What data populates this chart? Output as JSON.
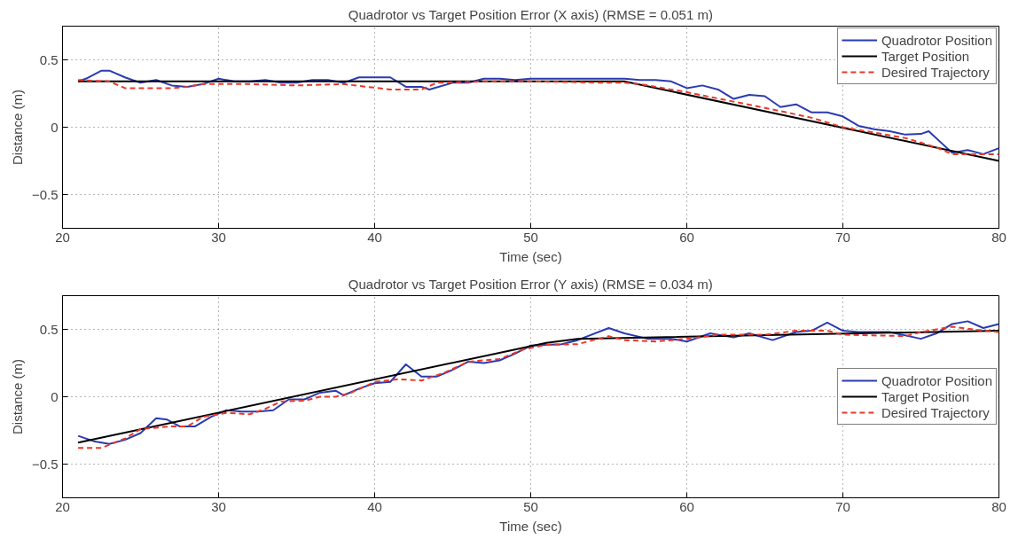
{
  "chart_data": [
    {
      "type": "line",
      "title": "Quadrotor vs Target Position Error (X axis) (RMSE = 0.051 m)",
      "xlabel": "Time (sec)",
      "ylabel": "Distance (m)",
      "xlim": [
        20,
        80
      ],
      "xticks": [
        20,
        30,
        40,
        50,
        60,
        70,
        80
      ],
      "ylim": [
        -0.75,
        0.75
      ],
      "yticks": [
        -0.5,
        0,
        0.5
      ],
      "grid": true,
      "legend": "top right",
      "series": [
        {
          "name": "Quadrotor Position",
          "color": "#2a3bb0",
          "line_style": "solid",
          "x": [
            21,
            21.5,
            22.5,
            23,
            24,
            25,
            26,
            27,
            28,
            29,
            30,
            31,
            32,
            33,
            34,
            35,
            36,
            37,
            38,
            39,
            40,
            41,
            42,
            43,
            43.5,
            45,
            46,
            47,
            48,
            49,
            50,
            52,
            54,
            56,
            57,
            58,
            59,
            60,
            61,
            62,
            63,
            64,
            65,
            66,
            67,
            68,
            69,
            70,
            71,
            72,
            73,
            74,
            75,
            75.5,
            77,
            78,
            79,
            80
          ],
          "values": [
            0.34,
            0.36,
            0.42,
            0.42,
            0.37,
            0.33,
            0.35,
            0.31,
            0.3,
            0.32,
            0.36,
            0.34,
            0.34,
            0.35,
            0.33,
            0.33,
            0.35,
            0.35,
            0.33,
            0.37,
            0.37,
            0.37,
            0.3,
            0.3,
            0.28,
            0.33,
            0.33,
            0.36,
            0.36,
            0.35,
            0.36,
            0.36,
            0.36,
            0.36,
            0.35,
            0.35,
            0.34,
            0.29,
            0.31,
            0.28,
            0.21,
            0.24,
            0.23,
            0.15,
            0.17,
            0.11,
            0.11,
            0.08,
            0.01,
            -0.015,
            -0.03,
            -0.055,
            -0.05,
            -0.03,
            -0.19,
            -0.17,
            -0.2,
            -0.155
          ]
        },
        {
          "name": "Target Position",
          "color": "#000000",
          "line_style": "solid",
          "x": [
            21,
            56,
            80
          ],
          "values": [
            0.34,
            0.34,
            -0.25
          ]
        },
        {
          "name": "Desired Trajectory",
          "color": "#e8382a",
          "line_style": "dashed",
          "x": [
            21,
            23,
            24,
            27,
            28,
            29,
            32,
            35,
            38,
            39.5,
            41,
            43,
            44,
            47,
            50,
            55,
            56,
            57,
            60,
            63,
            66,
            68,
            70,
            72,
            74,
            76,
            77,
            78,
            79,
            80
          ],
          "values": [
            0.35,
            0.34,
            0.29,
            0.29,
            0.3,
            0.32,
            0.32,
            0.31,
            0.32,
            0.3,
            0.28,
            0.28,
            0.33,
            0.34,
            0.34,
            0.33,
            0.33,
            0.32,
            0.26,
            0.19,
            0.12,
            0.07,
            0.0,
            -0.04,
            -0.08,
            -0.15,
            -0.2,
            -0.2,
            -0.2,
            -0.2
          ]
        }
      ]
    },
    {
      "type": "line",
      "title": "Quadrotor vs Target Position Error (Y axis) (RMSE = 0.034 m)",
      "xlabel": "Time (sec)",
      "ylabel": "Distance (m)",
      "xlim": [
        20,
        80
      ],
      "xticks": [
        20,
        30,
        40,
        50,
        60,
        70,
        80
      ],
      "ylim": [
        -0.75,
        0.75
      ],
      "yticks": [
        -0.5,
        0,
        0.5
      ],
      "grid": true,
      "legend": "right",
      "series": [
        {
          "name": "Quadrotor Position",
          "color": "#2a3bb0",
          "line_style": "solid",
          "x": [
            21,
            22,
            23,
            24,
            25,
            26,
            26.7,
            27.5,
            28.5,
            29.5,
            30.5,
            31.5,
            32.5,
            33.5,
            34.5,
            35.5,
            36.5,
            37.5,
            38,
            39,
            40,
            41,
            42,
            43,
            44,
            45,
            46,
            47,
            48,
            49,
            50,
            52,
            53,
            55,
            56,
            57.5,
            59,
            60,
            61.5,
            63,
            64,
            65.5,
            67,
            68,
            69,
            70,
            71,
            73,
            75,
            76,
            77,
            78,
            79,
            80
          ],
          "values": [
            -0.29,
            -0.33,
            -0.35,
            -0.32,
            -0.27,
            -0.16,
            -0.17,
            -0.22,
            -0.22,
            -0.15,
            -0.1,
            -0.11,
            -0.11,
            -0.1,
            -0.02,
            -0.02,
            0.03,
            0.045,
            0.01,
            0.06,
            0.1,
            0.11,
            0.24,
            0.15,
            0.15,
            0.2,
            0.26,
            0.25,
            0.27,
            0.32,
            0.38,
            0.39,
            0.42,
            0.51,
            0.47,
            0.43,
            0.43,
            0.41,
            0.47,
            0.44,
            0.47,
            0.42,
            0.48,
            0.49,
            0.55,
            0.49,
            0.48,
            0.48,
            0.43,
            0.47,
            0.54,
            0.56,
            0.51,
            0.54
          ]
        },
        {
          "name": "Target Position",
          "color": "#000000",
          "line_style": "solid",
          "x": [
            21,
            51,
            53,
            80
          ],
          "values": [
            -0.34,
            0.4,
            0.43,
            0.49
          ]
        },
        {
          "name": "Desired Trajectory",
          "color": "#e8382a",
          "line_style": "dashed",
          "x": [
            21,
            22.5,
            24,
            25,
            27,
            28,
            29,
            30.5,
            32,
            33,
            34,
            35.5,
            36.5,
            37.5,
            38.5,
            40,
            41.5,
            43,
            44.5,
            46,
            48,
            49.5,
            51,
            53,
            55,
            56,
            58,
            60,
            62,
            65,
            67,
            69,
            70,
            74,
            75,
            77,
            79,
            80
          ],
          "values": [
            -0.38,
            -0.38,
            -0.31,
            -0.24,
            -0.22,
            -0.22,
            -0.15,
            -0.12,
            -0.13,
            -0.09,
            -0.035,
            -0.03,
            0.0,
            0.0,
            0.03,
            0.11,
            0.13,
            0.12,
            0.18,
            0.26,
            0.28,
            0.35,
            0.385,
            0.39,
            0.45,
            0.42,
            0.41,
            0.43,
            0.46,
            0.46,
            0.49,
            0.49,
            0.46,
            0.45,
            0.48,
            0.52,
            0.49,
            0.48
          ]
        }
      ]
    }
  ]
}
